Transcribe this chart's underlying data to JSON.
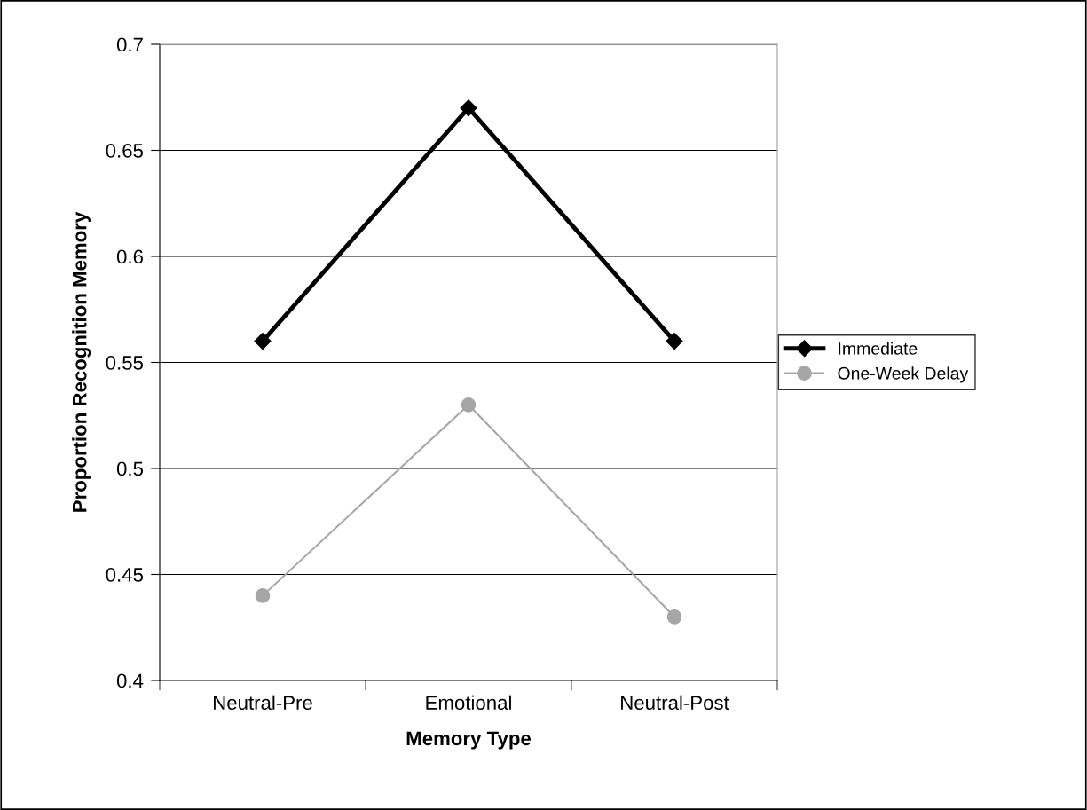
{
  "chart_data": {
    "type": "line",
    "xlabel": "Memory Type",
    "ylabel": "Proportion Recognition Memory",
    "categories": [
      "Neutral-Pre",
      "Emotional",
      "Neutral-Post"
    ],
    "series": [
      {
        "name": "Immediate",
        "color": "#000000",
        "marker": "diamond",
        "values": [
          0.56,
          0.67,
          0.56
        ]
      },
      {
        "name": "One-Week Delay",
        "color": "#a6a6a6",
        "marker": "circle",
        "values": [
          0.44,
          0.53,
          0.43
        ]
      }
    ],
    "ylim": [
      0.4,
      0.7
    ],
    "yticks": [
      0.4,
      0.45,
      0.5,
      0.55,
      0.6,
      0.65,
      0.7
    ],
    "grid": "y",
    "legend": "right",
    "line_style": "solid"
  }
}
